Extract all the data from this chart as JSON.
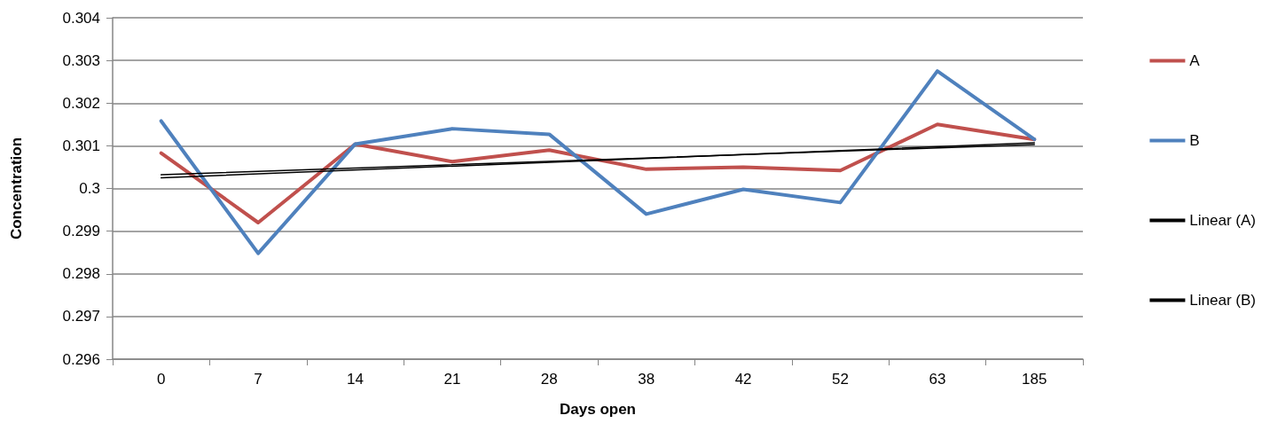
{
  "chart_data": {
    "type": "line",
    "xlabel": "Days open",
    "ylabel": "Concentration",
    "categories": [
      "0",
      "7",
      "14",
      "21",
      "28",
      "38",
      "42",
      "52",
      "63",
      "185"
    ],
    "series": [
      {
        "name": "A",
        "color": "#c0504d",
        "values": [
          0.30083,
          0.2992,
          0.30104,
          0.30063,
          0.3009,
          0.30045,
          0.3005,
          0.30042,
          0.3015,
          0.30115
        ]
      },
      {
        "name": "B",
        "color": "#4f81bd",
        "values": [
          0.30158,
          0.29848,
          0.30104,
          0.3014,
          0.30127,
          0.2994,
          0.29998,
          0.29967,
          0.30275,
          0.30115
        ]
      },
      {
        "name": "Linear (A)",
        "color": "#000000",
        "x": [
          "0",
          "185"
        ],
        "values": [
          0.30025,
          0.30107
        ]
      },
      {
        "name": "Linear (B)",
        "color": "#000000",
        "x": [
          "0",
          "185"
        ],
        "values": [
          0.30032,
          0.30103
        ]
      }
    ],
    "ylim": [
      0.296,
      0.304
    ],
    "yticks": [
      0.296,
      0.297,
      0.298,
      0.299,
      0.3,
      0.301,
      0.302,
      0.303,
      0.304
    ],
    "grid": "y",
    "legend": "right",
    "marker": "none",
    "line_style": "solid"
  }
}
